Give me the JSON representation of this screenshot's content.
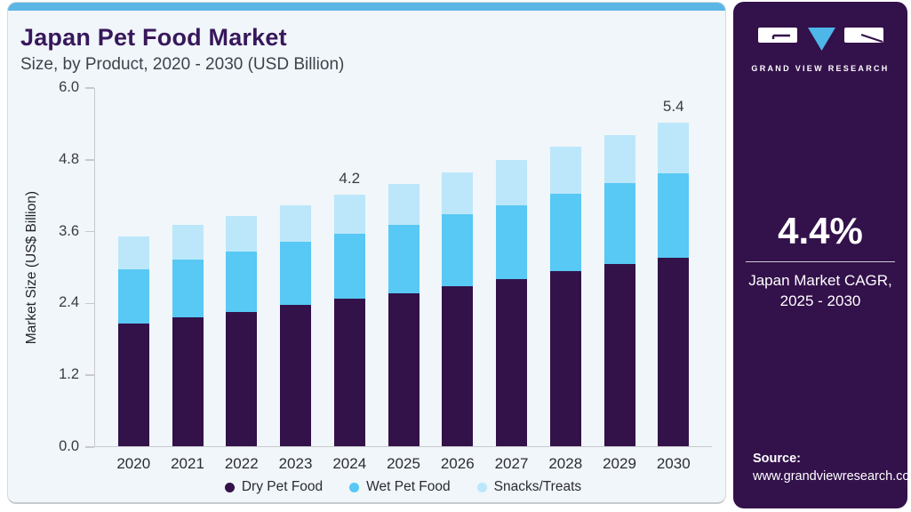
{
  "header": {
    "title": "Japan Pet Food Market",
    "subtitle": "Size, by Product, 2020 - 2030 (USD Billion)"
  },
  "sidebar": {
    "brand_name": "GRAND VIEW RESEARCH",
    "cagr_value": "4.4%",
    "cagr_caption_line1": "Japan Market CAGR,",
    "cagr_caption_line2": "2025 - 2030",
    "source_label": "Source:",
    "source_url": "www.grandviewresearch.com"
  },
  "colors": {
    "brand_purple": "#33114b",
    "title_purple": "#38175b",
    "accent_blue": "#5bb6e6",
    "dry_pet_food": "#331149",
    "wet_pet_food": "#58c8f4",
    "snacks_treats": "#bce7fa",
    "card_bg": "#f0f6fa",
    "axis_gray": "#c9c9ce"
  },
  "chart_data": {
    "type": "bar",
    "stacked": true,
    "title": "Japan Pet Food Market",
    "subtitle": "Size, by Product, 2020 - 2030 (USD Billion)",
    "xlabel": "",
    "ylabel": "Market Size (US$ Billion)",
    "ylim": [
      0,
      6.0
    ],
    "yticks": [
      0.0,
      1.2,
      2.4,
      3.6,
      4.8,
      6.0
    ],
    "grid": false,
    "legend_position": "bottom",
    "categories": [
      "2020",
      "2021",
      "2022",
      "2023",
      "2024",
      "2025",
      "2026",
      "2027",
      "2028",
      "2029",
      "2030"
    ],
    "series": [
      {
        "name": "Dry Pet Food",
        "color": "#331149",
        "values": [
          2.05,
          2.16,
          2.25,
          2.36,
          2.46,
          2.56,
          2.68,
          2.79,
          2.92,
          3.04,
          3.15
        ]
      },
      {
        "name": "Wet Pet Food",
        "color": "#58c8f4",
        "values": [
          0.91,
          0.96,
          1.0,
          1.05,
          1.09,
          1.14,
          1.19,
          1.24,
          1.3,
          1.35,
          1.41
        ]
      },
      {
        "name": "Snacks/Treats",
        "color": "#bce7fa",
        "values": [
          0.54,
          0.58,
          0.6,
          0.62,
          0.65,
          0.68,
          0.71,
          0.75,
          0.78,
          0.81,
          0.84
        ]
      }
    ],
    "totals": [
      3.5,
      3.7,
      3.85,
      4.03,
      4.2,
      4.38,
      4.58,
      4.78,
      5.0,
      5.2,
      5.4
    ],
    "bar_value_labels": [
      "",
      "",
      "",
      "",
      "4.2",
      "",
      "",
      "",
      "",
      "",
      "5.4"
    ]
  }
}
